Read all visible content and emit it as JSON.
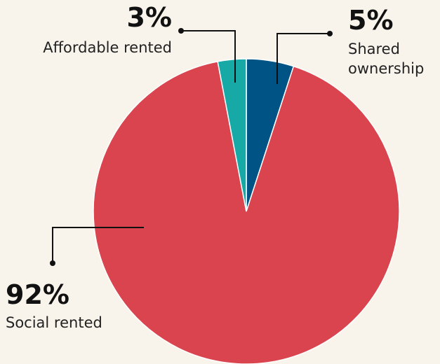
{
  "chart_data": {
    "type": "pie",
    "categories": [
      "Shared ownership",
      "Social rented",
      "Affordable rented"
    ],
    "values": [
      5,
      92,
      3
    ],
    "value_labels": [
      "5%",
      "92%",
      "3%"
    ],
    "colors": [
      "#005485",
      "#d9444f",
      "#16a9a5"
    ]
  }
}
